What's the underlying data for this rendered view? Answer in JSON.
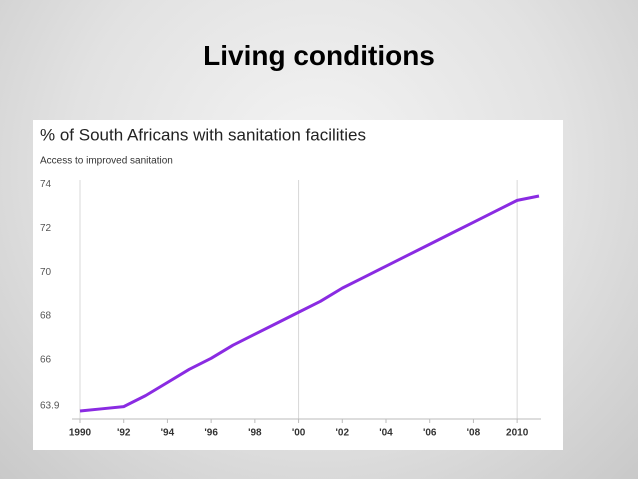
{
  "slide_title": "Living conditions",
  "chart_data": {
    "type": "line",
    "title": "% of South Africans with sanitation facilities",
    "subtitle": "Access to improved sanitation",
    "x": [
      1990,
      1991,
      1992,
      1993,
      1994,
      1995,
      1996,
      1997,
      1998,
      1999,
      2000,
      2001,
      2002,
      2003,
      2004,
      2005,
      2006,
      2007,
      2008,
      2009,
      2010,
      2011
    ],
    "series": [
      {
        "name": "Access to improved sanitation",
        "color": "#8a2be2",
        "values": [
          63.9,
          64.0,
          64.1,
          64.6,
          65.2,
          65.8,
          66.3,
          66.9,
          67.4,
          67.9,
          68.4,
          68.9,
          69.5,
          70.0,
          70.5,
          71.0,
          71.5,
          72.0,
          72.5,
          73.0,
          73.5,
          73.7
        ]
      }
    ],
    "xlim": [
      1990,
      2011
    ],
    "ylim": [
      63.9,
      74.2
    ],
    "xticks": [
      1990,
      {
        "value": 1992,
        "label": "'92"
      },
      {
        "value": 1994,
        "label": "'94"
      },
      {
        "value": 1996,
        "label": "'96"
      },
      {
        "value": 1998,
        "label": "'98"
      },
      {
        "value": 2000,
        "label": "'00"
      },
      {
        "value": 2002,
        "label": "'02"
      },
      {
        "value": 2004,
        "label": "'04"
      },
      {
        "value": 2006,
        "label": "'06"
      },
      {
        "value": 2008,
        "label": "'08"
      },
      2010
    ],
    "yticks": [
      63.9,
      66,
      68,
      70,
      72,
      74
    ],
    "x_gridlines": [
      1990,
      2000,
      2010
    ]
  }
}
